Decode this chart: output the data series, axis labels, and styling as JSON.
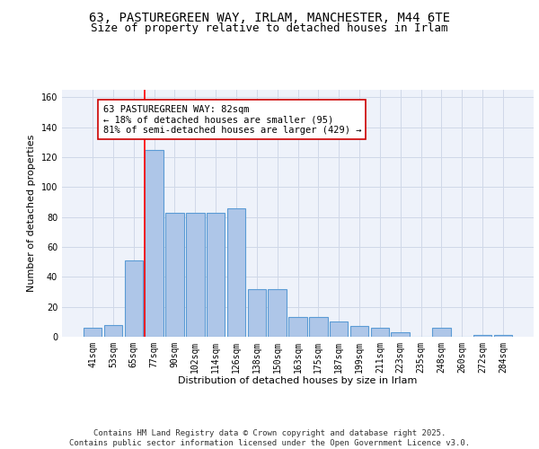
{
  "title": "63, PASTUREGREEN WAY, IRLAM, MANCHESTER, M44 6TE",
  "subtitle": "Size of property relative to detached houses in Irlam",
  "xlabel": "Distribution of detached houses by size in Irlam",
  "ylabel": "Number of detached properties",
  "bin_labels": [
    "41sqm",
    "53sqm",
    "65sqm",
    "77sqm",
    "90sqm",
    "102sqm",
    "114sqm",
    "126sqm",
    "138sqm",
    "150sqm",
    "163sqm",
    "175sqm",
    "187sqm",
    "199sqm",
    "211sqm",
    "223sqm",
    "235sqm",
    "248sqm",
    "260sqm",
    "272sqm",
    "284sqm"
  ],
  "bar_heights": [
    6,
    8,
    51,
    125,
    83,
    83,
    83,
    86,
    32,
    32,
    13,
    13,
    10,
    7,
    6,
    3,
    0,
    6,
    0,
    1,
    1
  ],
  "bar_color": "#aec6e8",
  "bar_edgecolor": "#5b9bd5",
  "bar_linewidth": 0.8,
  "red_line_x": 3,
  "annotation_text": "63 PASTUREGREEN WAY: 82sqm\n← 18% of detached houses are smaller (95)\n81% of semi-detached houses are larger (429) →",
  "annotation_box_color": "#ffffff",
  "annotation_border_color": "#cc0000",
  "ylim": [
    0,
    165
  ],
  "yticks": [
    0,
    20,
    40,
    60,
    80,
    100,
    120,
    140,
    160
  ],
  "grid_color": "#d0d8e8",
  "background_color": "#eef2fa",
  "footer": "Contains HM Land Registry data © Crown copyright and database right 2025.\nContains public sector information licensed under the Open Government Licence v3.0.",
  "title_fontsize": 10,
  "subtitle_fontsize": 9,
  "axis_label_fontsize": 8,
  "tick_fontsize": 7,
  "annotation_fontsize": 7.5,
  "footer_fontsize": 6.5
}
